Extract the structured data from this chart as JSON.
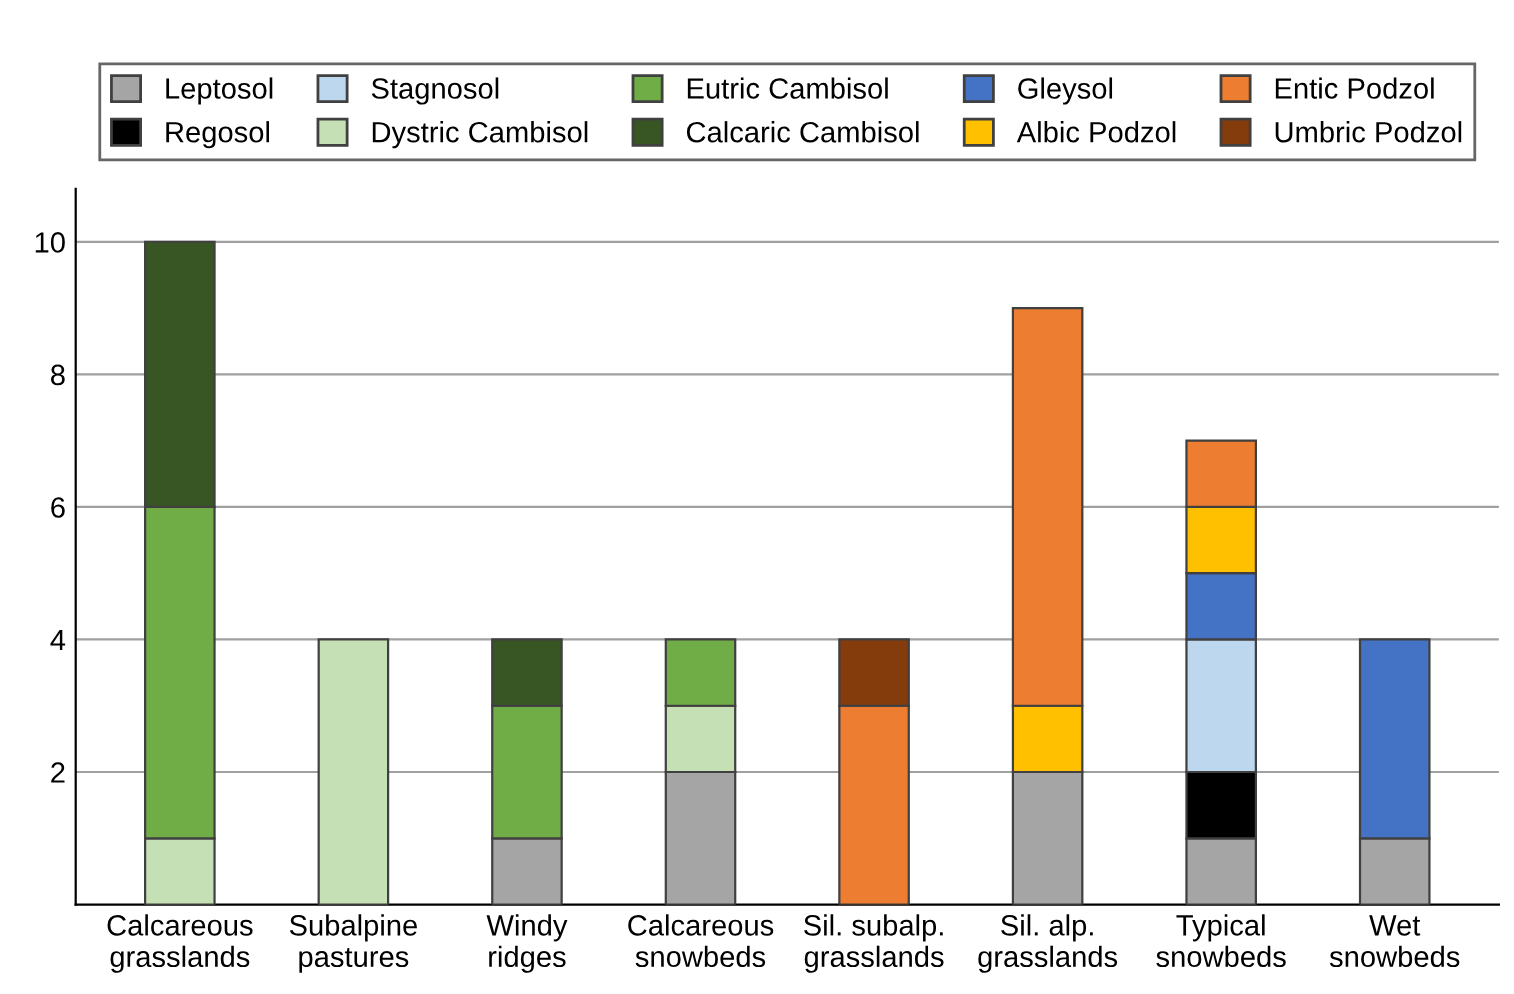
{
  "chart_data": {
    "type": "bar",
    "stacked": true,
    "categories": [
      "Calcareous\ngrasslands",
      "Subalpine\npastures",
      "Windy\nridges",
      "Calcareous\nsnowbeds",
      "Sil. subalp.\ngrasslands",
      "Sil. alp.\ngrasslands",
      "Typical\nsnowbeds",
      "Wet\nsnowbeds"
    ],
    "series": [
      {
        "name": "Leptosol",
        "color": "#a5a5a5",
        "values": [
          0,
          0,
          1,
          2,
          0,
          2,
          1,
          1
        ]
      },
      {
        "name": "Regosol",
        "color": "#000000",
        "values": [
          0,
          0,
          0,
          0,
          0,
          0,
          1,
          0
        ]
      },
      {
        "name": "Stagnosol",
        "color": "#bdd7ee",
        "values": [
          0,
          0,
          0,
          0,
          0,
          0,
          2,
          0
        ]
      },
      {
        "name": "Dystric Cambisol",
        "color": "#c5e0b4",
        "values": [
          1,
          4,
          0,
          1,
          0,
          0,
          0,
          0
        ]
      },
      {
        "name": "Eutric Cambisol",
        "color": "#70ad47",
        "values": [
          5,
          0,
          2,
          1,
          0,
          0,
          0,
          0
        ]
      },
      {
        "name": "Calcaric Cambisol",
        "color": "#375623",
        "values": [
          4,
          0,
          1,
          0,
          0,
          0,
          0,
          0
        ]
      },
      {
        "name": "Gleysol",
        "color": "#4472c4",
        "values": [
          0,
          0,
          0,
          0,
          0,
          0,
          1,
          3
        ]
      },
      {
        "name": "Albic Podzol",
        "color": "#ffc000",
        "values": [
          0,
          0,
          0,
          0,
          0,
          1,
          1,
          0
        ]
      },
      {
        "name": "Entic Podzol",
        "color": "#ed7d31",
        "values": [
          0,
          0,
          0,
          0,
          3,
          6,
          1,
          0
        ]
      },
      {
        "name": "Umbric Podzol",
        "color": "#843c0c",
        "values": [
          0,
          0,
          0,
          0,
          1,
          0,
          0,
          0
        ]
      }
    ],
    "ylim": [
      0,
      10.8
    ],
    "yticks": [
      2,
      4,
      6,
      8,
      10
    ],
    "grid": "y",
    "legend": "top"
  }
}
